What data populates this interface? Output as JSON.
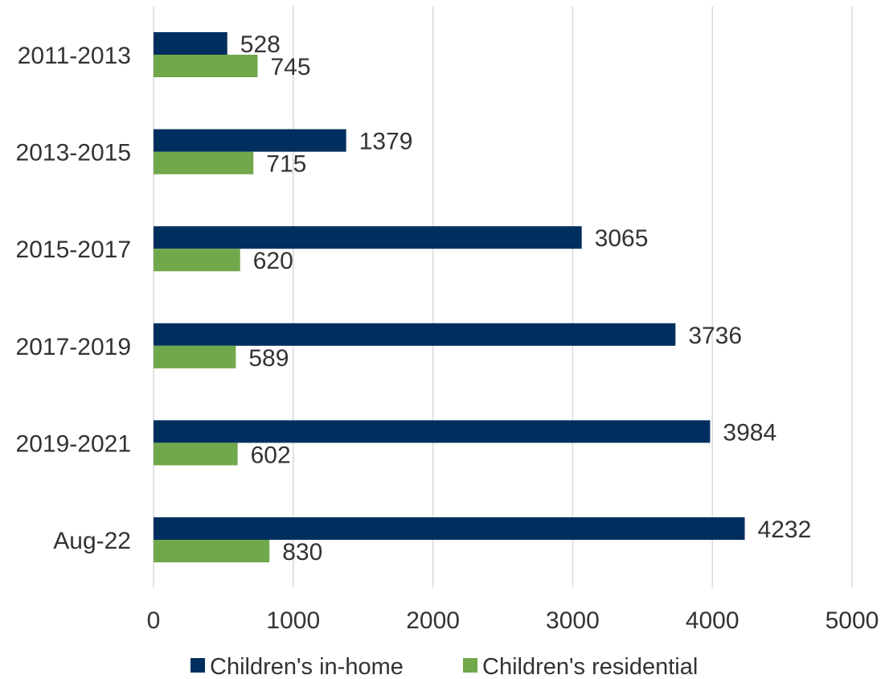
{
  "chart_data": {
    "type": "bar",
    "orientation": "horizontal",
    "categories": [
      "2011-2013",
      "2013-2015",
      "2015-2017",
      "2017-2019",
      "2019-2021",
      "Aug-22"
    ],
    "series": [
      {
        "name": "Children's in-home",
        "color": "#002f5f",
        "values": [
          528,
          1379,
          3065,
          3736,
          3984,
          4232
        ]
      },
      {
        "name": "Children's residential",
        "color": "#70a84b",
        "values": [
          745,
          715,
          620,
          589,
          602,
          830
        ]
      }
    ],
    "xlim": [
      0,
      5000
    ],
    "xticks": [
      "0",
      "1000",
      "2000",
      "3000",
      "4000",
      "5000"
    ],
    "grid": "vertical",
    "data_labels": true,
    "legend_position": "bottom"
  }
}
